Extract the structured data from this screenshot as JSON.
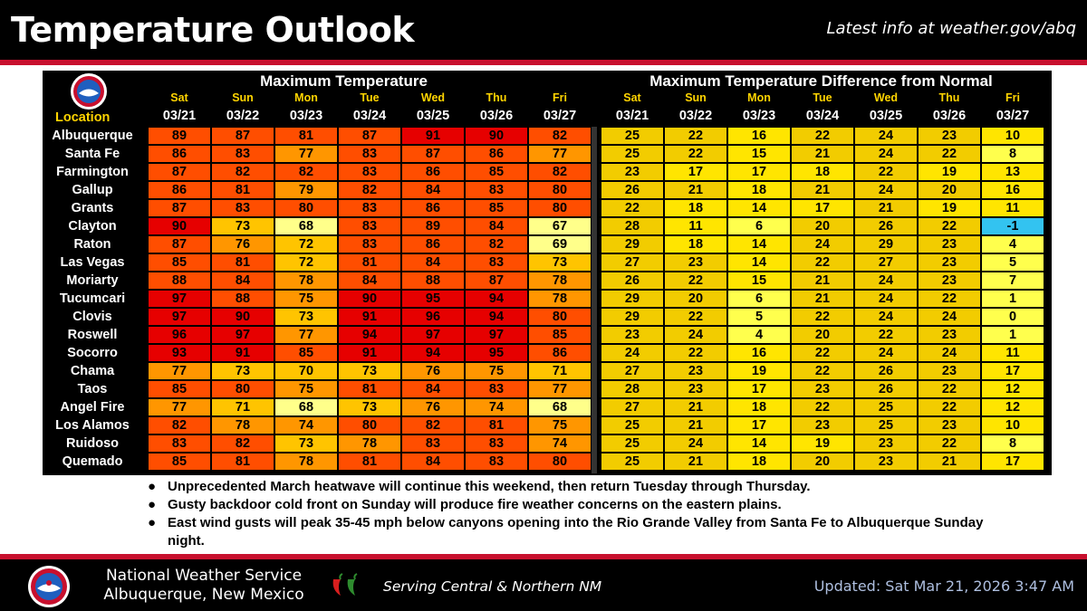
{
  "header": {
    "title": "Temperature Outlook",
    "link_text": "Latest info at weather.gov/abq"
  },
  "table": {
    "location_header": "Location",
    "max_title": "Maximum Temperature",
    "diff_title": "Maximum Temperature Difference from Normal",
    "days": [
      "Sat",
      "Sun",
      "Mon",
      "Tue",
      "Wed",
      "Thu",
      "Fri"
    ],
    "dates": [
      "03/21",
      "03/22",
      "03/23",
      "03/24",
      "03/25",
      "03/26",
      "03/27"
    ],
    "rows": [
      {
        "location": "Albuquerque",
        "max": [
          89,
          87,
          81,
          87,
          91,
          90,
          82
        ],
        "diff": [
          25,
          22,
          16,
          22,
          24,
          23,
          10
        ]
      },
      {
        "location": "Santa Fe",
        "max": [
          86,
          83,
          77,
          83,
          87,
          86,
          77
        ],
        "diff": [
          25,
          22,
          15,
          21,
          24,
          22,
          8
        ]
      },
      {
        "location": "Farmington",
        "max": [
          87,
          82,
          82,
          83,
          86,
          85,
          82
        ],
        "diff": [
          23,
          17,
          17,
          18,
          22,
          19,
          13
        ]
      },
      {
        "location": "Gallup",
        "max": [
          86,
          81,
          79,
          82,
          84,
          83,
          80
        ],
        "diff": [
          26,
          21,
          18,
          21,
          24,
          20,
          16
        ]
      },
      {
        "location": "Grants",
        "max": [
          87,
          83,
          80,
          83,
          86,
          85,
          80
        ],
        "diff": [
          22,
          18,
          14,
          17,
          21,
          19,
          11
        ]
      },
      {
        "location": "Clayton",
        "max": [
          90,
          73,
          68,
          83,
          89,
          84,
          67
        ],
        "diff": [
          28,
          11,
          6,
          20,
          26,
          22,
          -1
        ]
      },
      {
        "location": "Raton",
        "max": [
          87,
          76,
          72,
          83,
          86,
          82,
          69
        ],
        "diff": [
          29,
          18,
          14,
          24,
          29,
          23,
          4
        ]
      },
      {
        "location": "Las Vegas",
        "max": [
          85,
          81,
          72,
          81,
          84,
          83,
          73
        ],
        "diff": [
          27,
          23,
          14,
          22,
          27,
          23,
          5
        ]
      },
      {
        "location": "Moriarty",
        "max": [
          88,
          84,
          78,
          84,
          88,
          87,
          78
        ],
        "diff": [
          26,
          22,
          15,
          21,
          24,
          23,
          7
        ]
      },
      {
        "location": "Tucumcari",
        "max": [
          97,
          88,
          75,
          90,
          95,
          94,
          78
        ],
        "diff": [
          29,
          20,
          6,
          21,
          24,
          22,
          1
        ]
      },
      {
        "location": "Clovis",
        "max": [
          97,
          90,
          73,
          91,
          96,
          94,
          80
        ],
        "diff": [
          29,
          22,
          5,
          22,
          24,
          24,
          0
        ]
      },
      {
        "location": "Roswell",
        "max": [
          96,
          97,
          77,
          94,
          97,
          97,
          85
        ],
        "diff": [
          23,
          24,
          4,
          20,
          22,
          23,
          1
        ]
      },
      {
        "location": "Socorro",
        "max": [
          93,
          91,
          85,
          91,
          94,
          95,
          86
        ],
        "diff": [
          24,
          22,
          16,
          22,
          24,
          24,
          11
        ]
      },
      {
        "location": "Chama",
        "max": [
          77,
          73,
          70,
          73,
          76,
          75,
          71
        ],
        "diff": [
          27,
          23,
          19,
          22,
          26,
          23,
          17
        ]
      },
      {
        "location": "Taos",
        "max": [
          85,
          80,
          75,
          81,
          84,
          83,
          77
        ],
        "diff": [
          28,
          23,
          17,
          23,
          26,
          22,
          12
        ]
      },
      {
        "location": "Angel Fire",
        "max": [
          77,
          71,
          68,
          73,
          76,
          74,
          68
        ],
        "diff": [
          27,
          21,
          18,
          22,
          25,
          22,
          12
        ]
      },
      {
        "location": "Los Alamos",
        "max": [
          82,
          78,
          74,
          80,
          82,
          81,
          75
        ],
        "diff": [
          25,
          21,
          17,
          23,
          25,
          23,
          10
        ]
      },
      {
        "location": "Ruidoso",
        "max": [
          83,
          82,
          73,
          78,
          83,
          83,
          74
        ],
        "diff": [
          25,
          24,
          14,
          19,
          23,
          22,
          8
        ]
      },
      {
        "location": "Quemado",
        "max": [
          85,
          81,
          78,
          81,
          84,
          83,
          80
        ],
        "diff": [
          25,
          21,
          18,
          20,
          23,
          21,
          17
        ]
      }
    ]
  },
  "colors": {
    "max_scale": {
      "ge90": "#e60000",
      "ge80": "#ff4e00",
      "ge74": "#ff9600",
      "ge70": "#ffc400",
      "lt70": "#ffff8a"
    },
    "diff_scale": {
      "ge20": "#f2cc00",
      "ge10": "#ffe500",
      "ge0": "#ffff4d",
      "lt0": "#33c3f0"
    },
    "brand_red": "#c8102e"
  },
  "bullets": [
    "Unprecedented March heatwave will continue this weekend, then return Tuesday through Thursday.",
    "Gusty backdoor cold front on Sunday will produce fire weather concerns on the eastern plains.",
    "East wind gusts will peak 35-45 mph below canyons opening into the Rio Grande Valley from Santa Fe to Albuquerque Sunday night."
  ],
  "footer": {
    "org_line1": "National Weather Service",
    "org_line2": "Albuquerque, New Mexico",
    "serving": "Serving Central & Northern NM",
    "updated": "Updated: Sat Mar 21, 2026 3:47 AM",
    "logo_icon": "noaa-nws-logo-icon",
    "chile_icon": "chile-pepper-icon"
  }
}
